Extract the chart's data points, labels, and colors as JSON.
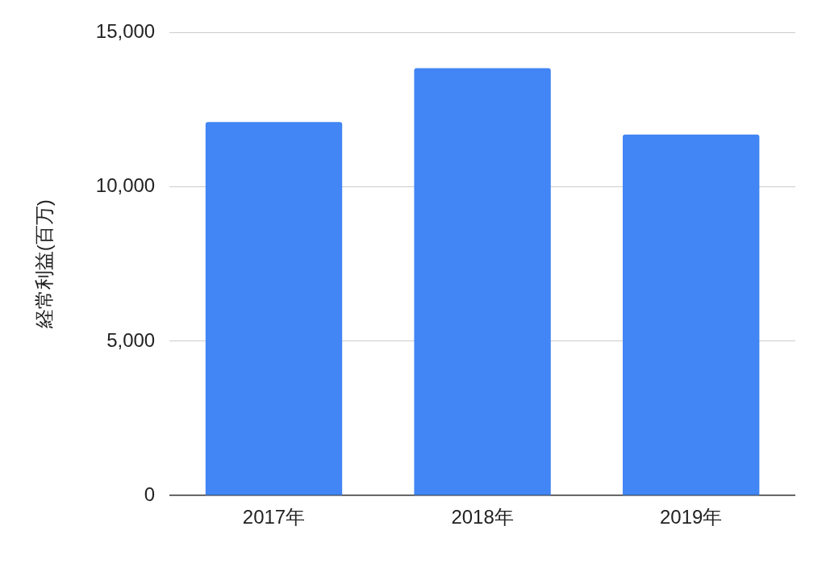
{
  "chart_data": {
    "type": "bar",
    "ylabel": "経常利益(百万)",
    "categories": [
      "2017年",
      "2018年",
      "2019年"
    ],
    "values": [
      12100,
      13850,
      11700
    ],
    "color": "#4285f4",
    "ylim": [
      0,
      15000
    ],
    "yticks": [
      0,
      {
        "value": 5000,
        "label": "5,000"
      },
      {
        "value": 10000,
        "label": "10,000"
      },
      {
        "value": 15000,
        "label": "15,000"
      }
    ],
    "grid": "y",
    "legend": false
  }
}
